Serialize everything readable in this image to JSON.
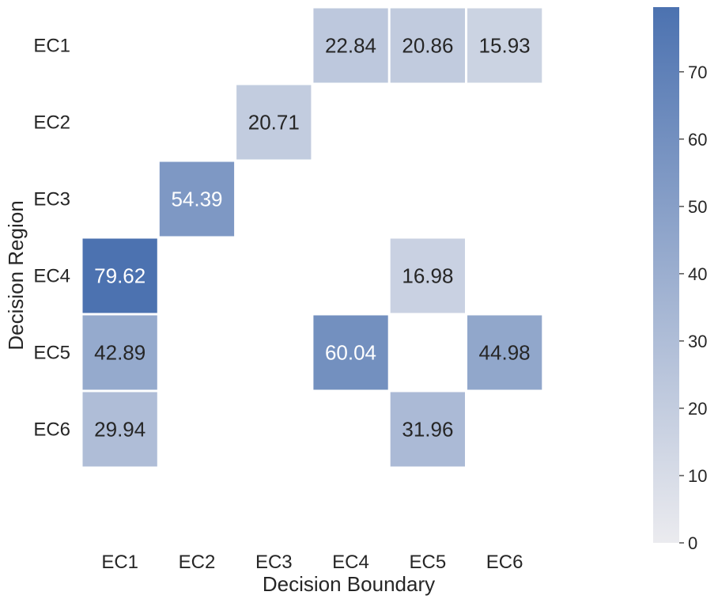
{
  "chart_data": {
    "type": "heatmap",
    "title": "",
    "xlabel": "Decision Boundary",
    "ylabel": "Decision Region",
    "x_categories": [
      "EC1",
      "EC2",
      "EC3",
      "EC4",
      "EC5",
      "EC6"
    ],
    "y_categories": [
      "EC1",
      "EC2",
      "EC3",
      "EC4",
      "EC5",
      "EC6"
    ],
    "values": [
      [
        null,
        null,
        null,
        22.84,
        20.86,
        15.93
      ],
      [
        null,
        null,
        20.71,
        null,
        null,
        null
      ],
      [
        null,
        54.39,
        null,
        null,
        null,
        null
      ],
      [
        79.62,
        null,
        null,
        null,
        16.98,
        null
      ],
      [
        42.89,
        null,
        null,
        60.04,
        null,
        44.98
      ],
      [
        29.94,
        null,
        null,
        null,
        31.96,
        null
      ]
    ],
    "value_labels": [
      [
        "",
        "",
        "",
        "22.84",
        "20.86",
        "15.93"
      ],
      [
        "",
        "",
        "20.71",
        "",
        "",
        ""
      ],
      [
        "",
        "54.39",
        "",
        "",
        "",
        ""
      ],
      [
        "79.62",
        "",
        "",
        "",
        "16.98",
        ""
      ],
      [
        "42.89",
        "",
        "",
        "60.04",
        "",
        "44.98"
      ],
      [
        "29.94",
        "",
        "",
        "",
        "31.96",
        ""
      ]
    ],
    "colorbar": {
      "range": [
        0,
        79.62
      ],
      "ticks": [
        0,
        10,
        20,
        30,
        40,
        50,
        60,
        70
      ],
      "tick_labels": [
        "0",
        "10",
        "20",
        "30",
        "40",
        "50",
        "60",
        "70"
      ],
      "color_low": "#ebebef",
      "color_high": "#4c72b0"
    },
    "label_colors": {
      "dark": "#262626",
      "light": "#ffffff"
    },
    "grid": false
  }
}
